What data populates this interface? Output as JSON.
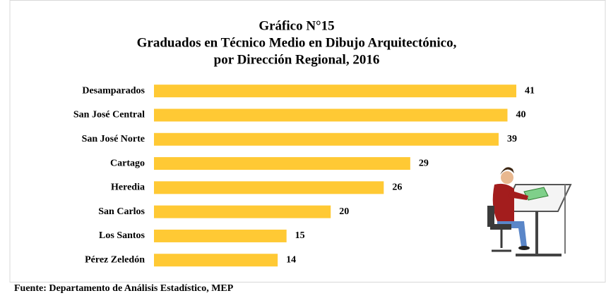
{
  "chart_data": {
    "type": "bar",
    "orientation": "horizontal",
    "title": [
      "Gráfico N°15",
      "Graduados en Técnico Medio en Dibujo Arquitectónico,",
      "por Dirección Regional, 2016"
    ],
    "categories": [
      "Desamparados",
      "San José Central",
      "San José Norte",
      "Cartago",
      "Heredia",
      "San Carlos",
      "Los Santos",
      "Pérez Zeledón"
    ],
    "values": [
      41,
      40,
      39,
      29,
      26,
      20,
      15,
      14
    ],
    "color": "#ffc934",
    "source": "Fuente: Departamento de Análisis Estadístico, MEP"
  }
}
